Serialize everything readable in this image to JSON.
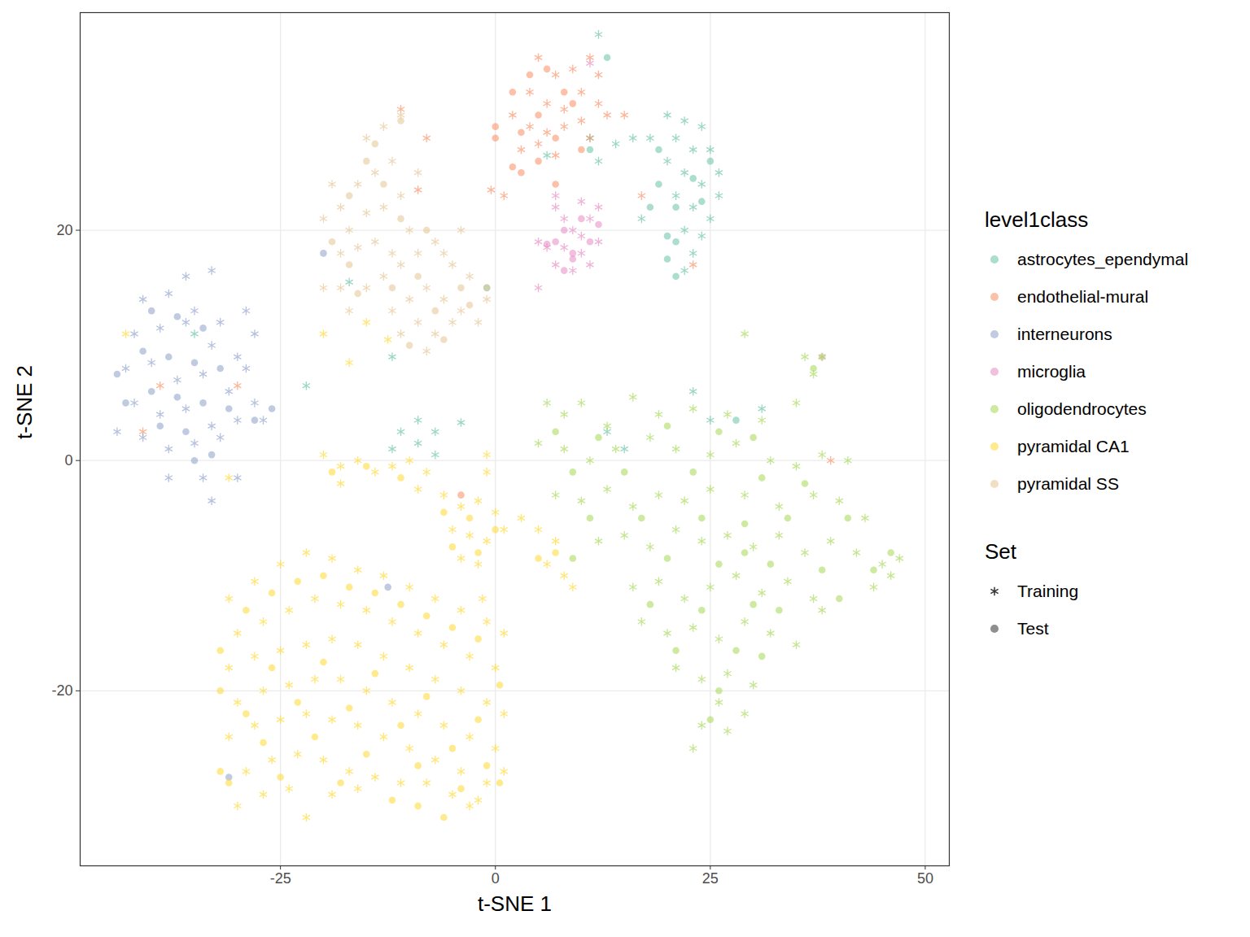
{
  "chart_data": {
    "type": "scatter",
    "xlabel": "t-SNE 1",
    "ylabel": "t-SNE 2",
    "xlim": [
      -48.3,
      52.8
    ],
    "ylim": [
      -35.2,
      38.9
    ],
    "xticks": [
      -25,
      0,
      25,
      50
    ],
    "yticks": [
      -20,
      0,
      20
    ],
    "grid": true,
    "legend": "right",
    "color_legend_title": "level1class",
    "shape_legend_title": "Set",
    "sets": [
      {
        "name": "Training",
        "marker": "asterisk"
      },
      {
        "name": "Test",
        "marker": "circle"
      }
    ],
    "series": [
      {
        "name": "astrocytes_ependymal",
        "color": "#66c2a5",
        "Training": {
          "x": [
            20,
            22,
            24,
            21,
            23,
            25,
            26,
            20,
            22,
            24,
            26,
            21,
            23,
            25,
            22,
            24,
            23,
            22,
            16,
            18,
            12,
            14,
            17,
            11,
            12,
            -11,
            -9,
            -7,
            -12,
            -9,
            -4,
            -7,
            -22,
            13,
            15,
            25,
            31,
            6,
            -35,
            -17,
            -12,
            23
          ],
          "y": [
            30,
            29.5,
            29,
            28,
            27,
            27,
            25,
            26,
            25,
            24,
            23,
            23,
            22,
            21,
            20,
            19.5,
            18,
            16.5,
            28,
            28,
            37,
            27.5,
            21,
            28,
            26,
            2.5,
            3.5,
            2.5,
            1,
            1.5,
            3.3,
            0.5,
            6.5,
            2.5,
            1,
            3.5,
            4.5,
            26.5,
            11,
            15.5,
            9,
            6
          ]
        },
        "Test": {
          "x": [
            21,
            23,
            25,
            19,
            21,
            20,
            24,
            20,
            21,
            18,
            11,
            13,
            19,
            28,
            -1
          ],
          "y": [
            22,
            24.5,
            26,
            27,
            19,
            19.5,
            22.5,
            17.5,
            16,
            22,
            27,
            35,
            24,
            3.5,
            15
          ]
        }
      },
      {
        "name": "endothelial-mural",
        "color": "#fc8d62",
        "Training": {
          "x": [
            5,
            7,
            9,
            11,
            12,
            4,
            6,
            8,
            10,
            12,
            2,
            4,
            6,
            8,
            10,
            11,
            3,
            5,
            7,
            -0.5,
            1,
            13,
            15,
            17,
            23,
            -39,
            -41,
            -8,
            -11,
            -30,
            -9,
            39
          ],
          "y": [
            35,
            33.5,
            34,
            35,
            33.5,
            32,
            31,
            30.5,
            32,
            31,
            30,
            29,
            28.5,
            29,
            29.5,
            28,
            27,
            27.5,
            26.5,
            23.5,
            23,
            30,
            30,
            23,
            17,
            6.5,
            2.5,
            28,
            30.5,
            6.5,
            23.5,
            0
          ]
        },
        "Test": {
          "x": [
            0,
            0,
            2,
            4,
            6,
            8,
            9,
            5,
            3,
            7,
            5,
            3,
            2,
            10,
            7,
            -4
          ],
          "y": [
            29,
            28,
            32,
            33.5,
            34,
            32,
            31,
            30,
            28.5,
            28,
            26,
            25,
            25.5,
            27,
            24,
            -3
          ]
        }
      },
      {
        "name": "interneurons",
        "color": "#8da0cb",
        "Training": {
          "x": [
            -41,
            -38,
            -35,
            -32,
            -29,
            -28,
            -42,
            -39,
            -36,
            -33,
            -30,
            -43,
            -40,
            -37,
            -34,
            -31,
            -28,
            -42,
            -39,
            -36,
            -33,
            -30,
            -27,
            -41,
            -38,
            -35,
            -32,
            -36,
            -33,
            -34,
            -38,
            -33,
            -30,
            -44,
            -29
          ],
          "y": [
            14,
            14.5,
            13,
            12,
            13,
            11,
            11,
            11.5,
            12,
            10,
            9,
            8,
            8.5,
            7,
            7.5,
            6,
            5,
            5,
            4,
            4.5,
            3,
            3.5,
            3.5,
            2,
            1,
            1.5,
            2,
            16,
            16.5,
            -1.5,
            -1.5,
            -3.5,
            -1.5,
            2.5,
            8
          ]
        },
        "Test": {
          "x": [
            -40,
            -37,
            -34,
            -41,
            -38,
            -35,
            -32,
            -40,
            -37,
            -34,
            -31,
            -28,
            -43,
            -39,
            -36,
            -33,
            -35,
            -26,
            -44,
            -20,
            -31,
            -12.5
          ],
          "y": [
            13,
            12.5,
            11.5,
            9.5,
            9,
            8.5,
            8,
            6,
            5.5,
            5,
            4.5,
            3.5,
            5,
            3,
            2.5,
            0.5,
            0,
            4.5,
            7.5,
            18,
            -27.5,
            -11
          ]
        }
      },
      {
        "name": "microglia",
        "color": "#e78ac3",
        "Training": {
          "x": [
            7,
            8,
            9,
            10,
            11,
            12,
            8,
            10,
            11,
            9,
            7,
            6,
            12,
            5,
            7,
            10,
            5,
            11,
            38
          ],
          "y": [
            22,
            21,
            20,
            19.5,
            21,
            22,
            18.5,
            18,
            17,
            16.5,
            17,
            18.5,
            19,
            19,
            23,
            22.5,
            15,
            34.5,
            9
          ]
        },
        "Test": {
          "x": [
            8,
            9,
            10,
            11,
            12,
            7,
            9,
            8,
            6
          ],
          "y": [
            20,
            18,
            21,
            19,
            20.5,
            19,
            17.5,
            16.5,
            18.8
          ]
        }
      },
      {
        "name": "oligodendrocytes",
        "color": "#a6d854",
        "Training": {
          "x": [
            6,
            8,
            10,
            13,
            16,
            19,
            23,
            27,
            31,
            35,
            37,
            36,
            29,
            5,
            8,
            11,
            14,
            18,
            21,
            25,
            28,
            32,
            35,
            38,
            41,
            7,
            10,
            13,
            16,
            19,
            22,
            25,
            29,
            33,
            37,
            40,
            43,
            12,
            15,
            18,
            21,
            24,
            27,
            30,
            33,
            36,
            39,
            42,
            45,
            47,
            16,
            19,
            22,
            25,
            28,
            31,
            34,
            37,
            44,
            46,
            17,
            20,
            23,
            26,
            29,
            32,
            35,
            38,
            21,
            24,
            27,
            30,
            26,
            29,
            24,
            27,
            23
          ],
          "y": [
            5,
            4,
            5,
            3,
            5.5,
            4,
            4.5,
            4,
            3.5,
            5,
            7.5,
            9,
            11,
            1.5,
            1,
            0,
            1,
            2,
            1,
            0.5,
            1.5,
            0,
            -0.5,
            0.5,
            0,
            -3,
            -3.5,
            -2.5,
            -4,
            -3,
            -3.5,
            -2.5,
            -3,
            -4,
            -3,
            -3.5,
            -5,
            -7,
            -6.5,
            -7.5,
            -6,
            -7,
            -6.5,
            -7.5,
            -6.5,
            -8,
            -7,
            -8,
            -9,
            -8.5,
            -11,
            -10.5,
            -12,
            -11,
            -10,
            -11.5,
            -10.5,
            -12,
            -11,
            -10,
            -14,
            -15,
            -14.5,
            -15.5,
            -14,
            -15,
            -16,
            -13,
            -18,
            -19,
            -18.5,
            -19.5,
            -21,
            -22,
            -23,
            -23.5,
            -25
          ]
        },
        "Test": {
          "x": [
            7,
            12,
            20,
            26,
            30,
            37,
            38,
            9,
            15,
            23,
            31,
            36,
            11,
            17,
            24,
            29,
            34,
            41,
            20,
            26,
            29,
            32,
            38,
            46,
            44,
            18,
            24,
            30,
            33,
            21,
            28,
            31,
            26,
            25,
            9,
            40
          ],
          "y": [
            2.5,
            2,
            3,
            2.5,
            2,
            8,
            9,
            -1,
            -1,
            -1,
            -1.5,
            -2,
            -5,
            -5,
            -5,
            -5.5,
            -5,
            -5,
            -8.5,
            -9,
            -8,
            -9,
            -9.5,
            -8,
            -9.5,
            -12.5,
            -13,
            -12.5,
            -13,
            -16.5,
            -16.5,
            -17,
            -20,
            -22.5,
            -8.5,
            -12
          ]
        }
      },
      {
        "name": "pyramidal CA1",
        "color": "#ffd92f",
        "Training": {
          "x": [
            -31,
            -28,
            -25,
            -22,
            -19,
            -16,
            -13,
            -10,
            -7,
            -4,
            -1,
            1,
            -30,
            -27,
            -24,
            -21,
            -18,
            -15,
            -12,
            -9,
            -6,
            -3,
            0,
            -31,
            -28,
            -25,
            -22,
            -19,
            -16,
            -13,
            -10,
            -7,
            -4,
            -1,
            1,
            -30,
            -27,
            -24,
            -21,
            -18,
            -15,
            -12,
            -9,
            -6,
            -3,
            0,
            -31,
            -28,
            -25,
            -22,
            -19,
            -16,
            -13,
            -10,
            -7,
            -4,
            -1,
            1,
            -29,
            -26,
            -23,
            -20,
            -17,
            -14,
            -11,
            -8,
            -5,
            -2,
            -30,
            -27,
            -24,
            -22,
            -19,
            -16,
            -3,
            -20,
            -18,
            -16,
            -14,
            -12,
            -10,
            -8,
            -18,
            -9,
            -6,
            -4,
            -2,
            0,
            -5,
            -3,
            -1,
            1,
            -4,
            -2,
            -1,
            -1,
            3,
            5,
            7,
            8,
            9,
            6,
            -1.5,
            -17,
            -20,
            -15,
            -12.5,
            -43,
            -31
          ],
          "y": [
            -12,
            -10.5,
            -9,
            -8,
            -8.5,
            -9.5,
            -10,
            -11,
            -12,
            -13,
            -14,
            -15,
            -15,
            -14,
            -13,
            -12,
            -12.5,
            -13,
            -14,
            -15,
            -16,
            -17,
            -18,
            -18,
            -17,
            -16.5,
            -16,
            -15.5,
            -16,
            -17,
            -18,
            -19,
            -20,
            -21,
            -22,
            -21,
            -20,
            -19.5,
            -19,
            -19,
            -20,
            -21,
            -22,
            -23,
            -24,
            -25,
            -24,
            -23,
            -22.5,
            -22,
            -22.5,
            -23,
            -24,
            -25,
            -26,
            -27,
            -28,
            -27,
            -27,
            -26,
            -25.5,
            -26,
            -27,
            -27.5,
            -28,
            -28,
            -29,
            -29.5,
            -30,
            -29,
            -28.5,
            -31,
            -29,
            -28.5,
            -30,
            0.5,
            -0.5,
            0,
            -1,
            -0.5,
            0,
            -1,
            -2,
            -2.5,
            -3,
            -4,
            -3.5,
            -4.5,
            -6,
            -6.5,
            -7,
            -6,
            -8.5,
            -9,
            -1,
            0.5,
            -5,
            -6,
            -7,
            -10,
            -11,
            -9,
            -12,
            8.5,
            11,
            12,
            10.5,
            11,
            -1.5
          ]
        },
        "Test": {
          "x": [
            -29,
            -26,
            -23,
            -20,
            -17,
            -14,
            -11,
            -8,
            -5,
            -2,
            -32,
            -26,
            -20,
            -14,
            -8,
            -2,
            0.5,
            -32,
            -29,
            -23,
            -17,
            -11,
            -5,
            -1,
            -32,
            -27,
            -21,
            -15,
            -9,
            -4,
            0.5,
            -31,
            -25,
            -18,
            -12,
            -6,
            -9,
            -19,
            -15,
            -11,
            -3,
            -5,
            -2,
            0,
            -6,
            7,
            5
          ],
          "y": [
            -13,
            -11.5,
            -10.5,
            -10,
            -11,
            -11.5,
            -12.5,
            -13.5,
            -14.5,
            -15.5,
            -16.5,
            -18,
            -17.5,
            -18.5,
            -20.5,
            -22.5,
            -19.5,
            -20,
            -22,
            -21,
            -21.5,
            -23,
            -25,
            -26.5,
            -27,
            -24.5,
            -24,
            -25.5,
            -26.5,
            -28.5,
            -28,
            -28,
            -27.5,
            -28,
            -29.5,
            -31,
            -30,
            -1,
            -0.5,
            -1.5,
            -5,
            -7.5,
            -8,
            -6,
            -4.5,
            -8,
            -8.5
          ]
        }
      },
      {
        "name": "pyramidal SS",
        "color": "#e5c494",
        "Training": {
          "x": [
            -20,
            -18,
            -16,
            -14,
            -12,
            -15,
            -13,
            -11,
            -19,
            -17,
            -15,
            -13,
            -11,
            -10,
            -18,
            -16,
            -14,
            -12,
            -9,
            -20,
            -13,
            -11,
            -9,
            -7,
            -5,
            -3,
            -1,
            -12,
            -10,
            -8,
            -6,
            -4,
            -2,
            -11,
            -9,
            -7,
            -5,
            -8,
            -6,
            -4,
            -18,
            -17,
            -15
          ],
          "y": [
            21,
            22,
            24,
            25,
            26,
            28,
            29,
            30,
            24,
            20,
            21.5,
            22,
            23,
            20,
            18,
            18.5,
            19,
            18,
            25,
            15,
            16,
            17,
            18,
            19,
            17,
            16,
            14,
            13,
            14,
            15,
            14,
            13,
            12,
            11,
            12,
            11,
            12,
            9.5,
            18,
            20,
            15,
            13,
            15
          ]
        },
        "Test": {
          "x": [
            -19,
            -17,
            -15,
            -13,
            -11,
            -14,
            -12,
            -9,
            -7,
            -4,
            -3,
            -6,
            -10,
            -16,
            -8,
            -17,
            -11,
            -1
          ],
          "y": [
            19,
            23,
            26,
            24,
            21,
            27.5,
            15,
            16,
            13,
            15,
            13.5,
            10.5,
            10,
            14.5,
            20,
            17,
            29.5,
            15
          ]
        }
      }
    ]
  }
}
